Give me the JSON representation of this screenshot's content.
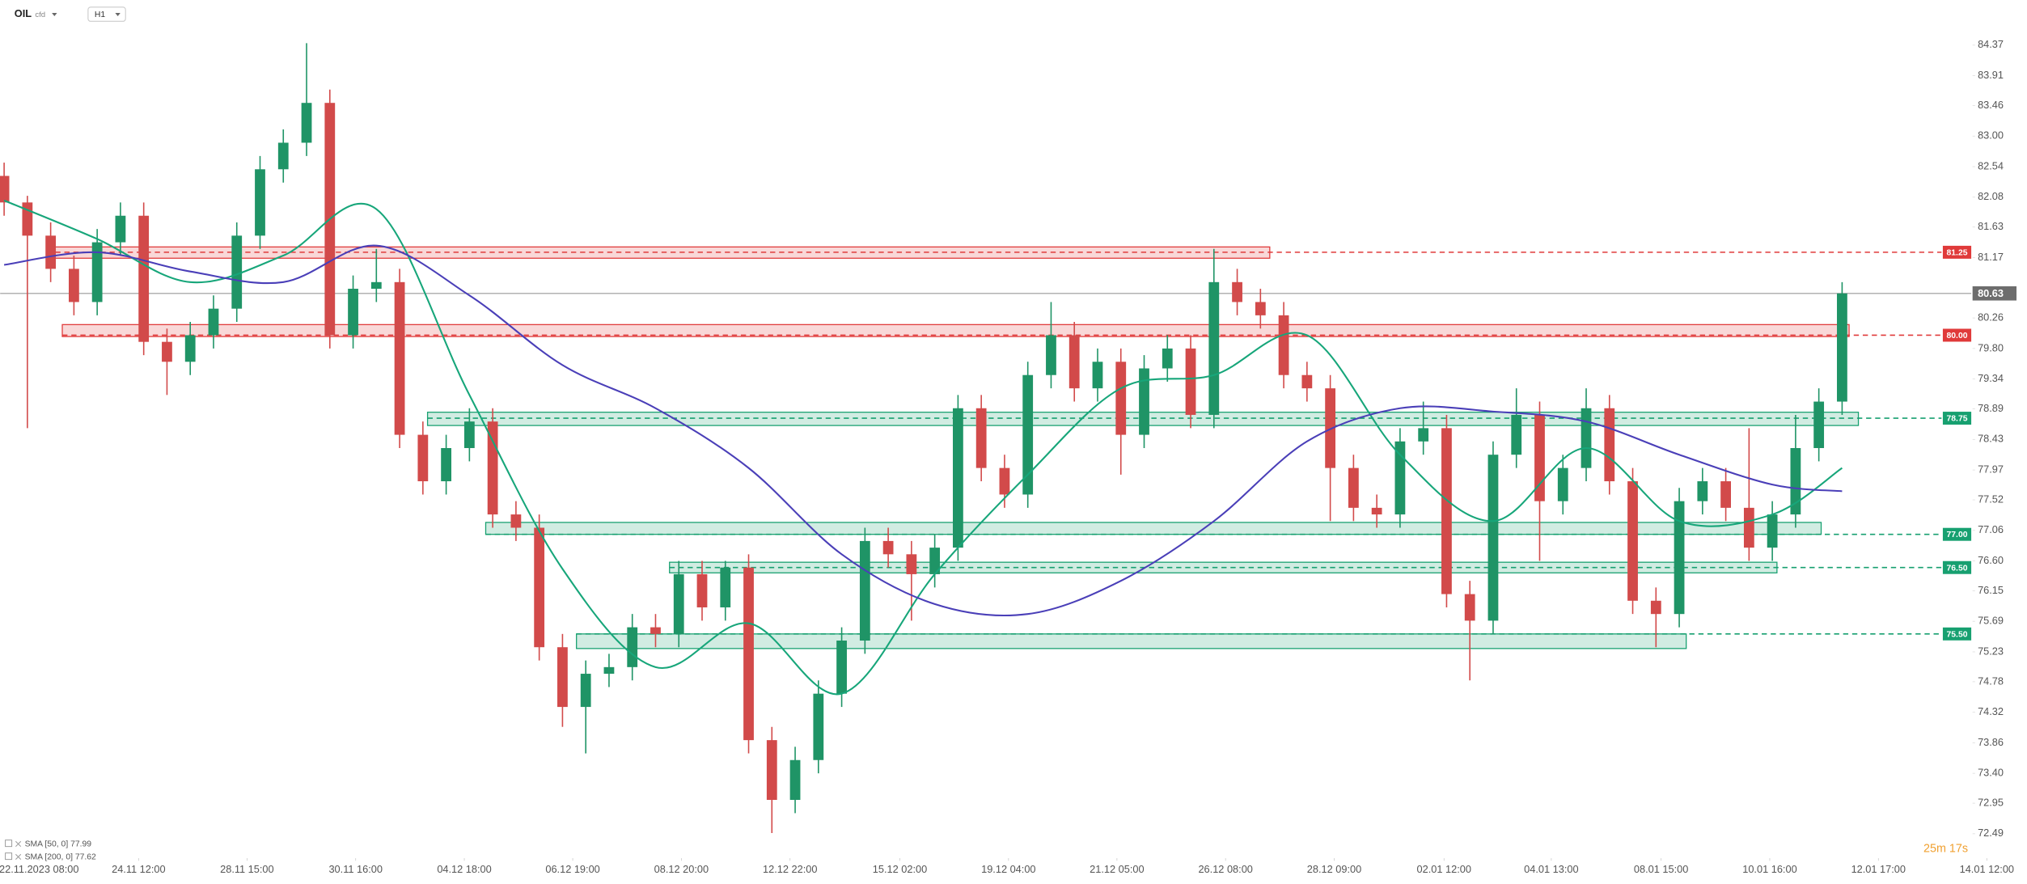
{
  "header": {
    "symbol": "OIL",
    "instrument_type": "cfd",
    "timeframe": "H1"
  },
  "footer": {
    "countdown": "25m 17s"
  },
  "chart_data": {
    "type": "candlestick",
    "xlim": [
      -0.17,
      86.94
    ],
    "xticks": [
      {
        "value": 1.5,
        "label": "22.11.2023 08:00"
      },
      {
        "value": 5.78,
        "label": "24.11 12:00"
      },
      {
        "value": 10.44,
        "label": "28.11 15:00"
      },
      {
        "value": 15.11,
        "label": "30.11 16:00"
      },
      {
        "value": 19.78,
        "label": "04.12 18:00"
      },
      {
        "value": 24.44,
        "label": "06.12 19:00"
      },
      {
        "value": 29.11,
        "label": "08.12 20:00"
      },
      {
        "value": 33.78,
        "label": "12.12 22:00"
      },
      {
        "value": 38.5,
        "label": "15.12 02:00"
      },
      {
        "value": 43.17,
        "label": "19.12 04:00"
      },
      {
        "value": 47.83,
        "label": "21.12 05:00"
      },
      {
        "value": 52.5,
        "label": "26.12 08:00"
      },
      {
        "value": 57.17,
        "label": "28.12 09:00"
      },
      {
        "value": 61.89,
        "label": "02.01 12:00"
      },
      {
        "value": 66.5,
        "label": "04.01 13:00"
      },
      {
        "value": 71.22,
        "label": "08.01 15:00"
      },
      {
        "value": 75.89,
        "label": "10.01 16:00"
      },
      {
        "value": 80.56,
        "label": "12.01 17:00"
      },
      {
        "value": 85.22,
        "label": "14.01 12:00"
      }
    ],
    "ylim": [
      72.2,
      85.05
    ],
    "yticks": [
      84.37,
      83.91,
      83.46,
      {
        "value": 83,
        "label": "83.00"
      },
      82.54,
      82.08,
      81.63,
      81.17,
      80.26,
      {
        "value": 79.8,
        "label": "79.80"
      },
      79.34,
      78.89,
      78.43,
      77.97,
      77.52,
      77.06,
      {
        "value": 76.6,
        "label": "76.60"
      },
      76.15,
      75.69,
      75.23,
      74.78,
      74.32,
      73.86,
      {
        "value": 73.4,
        "label": "73.40"
      },
      72.95,
      72.49
    ],
    "up_color": "#1f9466",
    "down_color": "#d24a4a",
    "open": [
      82.4,
      82.0,
      81.5,
      81.0,
      80.5,
      81.4,
      81.8,
      79.9,
      79.6,
      80.0,
      80.4,
      81.5,
      82.5,
      82.9,
      83.5,
      80.0,
      80.7,
      80.8,
      78.5,
      77.8,
      78.3,
      78.7,
      77.3,
      77.1,
      75.3,
      74.4,
      74.9,
      75.0,
      75.6,
      75.5,
      76.4,
      75.9,
      76.5,
      73.9,
      73.0,
      73.6,
      74.6,
      75.4,
      76.9,
      76.7,
      76.4,
      76.8,
      78.9,
      78.0,
      77.6,
      79.4,
      80.0,
      79.2,
      79.6,
      78.5,
      79.5,
      79.8,
      78.8,
      80.8,
      80.5,
      80.3,
      79.4,
      79.2,
      78.0,
      77.4,
      77.3,
      78.4,
      78.6,
      76.1,
      75.7,
      78.2,
      78.8,
      77.5,
      78.0,
      78.9,
      77.8,
      76.0,
      75.8,
      77.5,
      77.8,
      77.4,
      76.8,
      77.3,
      78.3,
      79.0
    ],
    "high": [
      82.6,
      82.1,
      81.7,
      81.2,
      81.6,
      82.0,
      82.0,
      80.1,
      80.2,
      80.6,
      81.7,
      82.7,
      83.1,
      84.4,
      83.7,
      80.9,
      81.3,
      81.0,
      78.7,
      78.5,
      78.9,
      78.9,
      77.5,
      77.3,
      75.5,
      75.1,
      75.2,
      75.8,
      75.8,
      76.6,
      76.6,
      76.6,
      76.7,
      74.1,
      73.8,
      74.8,
      75.6,
      77.1,
      77.1,
      76.9,
      77.0,
      79.1,
      79.1,
      78.2,
      79.6,
      80.5,
      80.2,
      79.8,
      79.8,
      79.7,
      80.0,
      80.0,
      81.3,
      81.0,
      80.7,
      80.5,
      79.6,
      79.4,
      78.2,
      77.6,
      78.6,
      79.0,
      78.8,
      76.3,
      78.4,
      79.2,
      79.0,
      78.2,
      79.2,
      79.1,
      78.0,
      76.2,
      77.7,
      78.0,
      78.0,
      78.6,
      77.5,
      78.8,
      79.2,
      80.8
    ],
    "low": [
      81.8,
      78.6,
      80.8,
      80.3,
      80.3,
      81.2,
      79.7,
      79.1,
      79.4,
      79.8,
      80.2,
      81.3,
      82.3,
      82.7,
      79.8,
      79.8,
      80.5,
      78.3,
      77.6,
      77.6,
      78.1,
      77.1,
      76.9,
      75.1,
      74.1,
      73.7,
      74.7,
      74.8,
      75.3,
      75.3,
      75.7,
      75.7,
      73.7,
      72.5,
      72.8,
      73.4,
      74.4,
      75.2,
      76.5,
      75.7,
      76.2,
      76.6,
      77.8,
      77.4,
      77.4,
      79.2,
      79.0,
      79.0,
      77.9,
      78.3,
      79.3,
      78.6,
      78.6,
      80.3,
      80.1,
      79.2,
      79.0,
      77.2,
      77.2,
      77.1,
      77.1,
      78.2,
      75.9,
      74.8,
      75.5,
      78.0,
      76.6,
      77.3,
      77.8,
      77.6,
      75.8,
      75.3,
      75.6,
      77.3,
      77.2,
      76.6,
      76.6,
      77.1,
      78.1,
      78.8
    ],
    "close": [
      82.0,
      81.5,
      81.0,
      80.5,
      81.4,
      81.8,
      79.9,
      79.6,
      80.0,
      80.4,
      81.5,
      82.5,
      82.9,
      83.5,
      80.0,
      80.7,
      80.8,
      78.5,
      77.8,
      78.3,
      78.7,
      77.3,
      77.1,
      75.3,
      74.4,
      74.9,
      75.0,
      75.6,
      75.5,
      76.4,
      75.9,
      76.5,
      73.9,
      73.0,
      73.6,
      74.6,
      75.4,
      76.9,
      76.7,
      76.4,
      76.8,
      78.9,
      78.0,
      77.6,
      79.4,
      80.0,
      79.2,
      79.6,
      78.5,
      79.5,
      79.8,
      78.8,
      80.8,
      80.5,
      80.3,
      79.4,
      79.2,
      78.0,
      77.4,
      77.3,
      78.4,
      78.6,
      76.1,
      75.7,
      78.2,
      78.8,
      77.5,
      78.0,
      78.9,
      77.8,
      76.0,
      75.8,
      77.5,
      77.8,
      77.4,
      76.8,
      77.3,
      78.3,
      79.0,
      80.63
    ],
    "indicators": [
      {
        "name": "SMA [50, 0]",
        "legend_value": 77.99,
        "color": "#17a67a",
        "x": [
          0,
          4,
          8,
          12,
          16,
          20,
          24,
          28,
          32,
          36,
          40,
          44,
          48,
          52,
          56,
          60,
          64,
          68,
          72,
          76,
          79
        ],
        "values": [
          82.03,
          81.45,
          80.8,
          81.2,
          81.9,
          79.1,
          76.48,
          75.0,
          75.66,
          74.6,
          76.4,
          77.9,
          79.2,
          79.4,
          80.0,
          78.2,
          77.2,
          78.3,
          77.2,
          77.3,
          78.0
        ]
      },
      {
        "name": "SMA [200, 0]",
        "legend_value": 77.62,
        "color": "#4a3fb8",
        "x": [
          0,
          4,
          8,
          12,
          16,
          20,
          24,
          28,
          32,
          36,
          40,
          44,
          48,
          52,
          56,
          60,
          64,
          68,
          72,
          76,
          79
        ],
        "values": [
          81.06,
          81.25,
          80.96,
          80.8,
          81.35,
          80.6,
          79.55,
          78.9,
          78.0,
          76.7,
          75.95,
          75.8,
          76.3,
          77.2,
          78.4,
          78.9,
          78.85,
          78.7,
          78.2,
          77.75,
          77.65
        ]
      }
    ],
    "levels": [
      {
        "level": 81.25,
        "color": "#e03a3a",
        "zone_low": 81.16,
        "zone_high": 81.33,
        "zone_x": [
          2.2,
          54.4
        ]
      },
      {
        "level": {
          "value": 80,
          "label": "80.00"
        },
        "color": "#e03a3a",
        "zone_low": 79.98,
        "zone_high": 80.16,
        "zone_x": [
          2.5,
          79.3
        ]
      },
      {
        "level": 78.75,
        "color": "#17a070",
        "zone_low": 78.64,
        "zone_high": 78.84,
        "zone_x": [
          18.2,
          79.7
        ]
      },
      {
        "level": {
          "value": 77,
          "label": "77.00"
        },
        "color": "#17a070",
        "zone_low": 77.0,
        "zone_high": 77.18,
        "zone_x": [
          20.7,
          78.1
        ]
      },
      {
        "level": {
          "value": 76.5,
          "label": "76.50"
        },
        "color": "#17a070",
        "zone_low": 76.42,
        "zone_high": 76.58,
        "zone_x": [
          28.6,
          76.2
        ]
      },
      {
        "level": {
          "value": 75.5,
          "label": "75.50"
        },
        "color": "#17a070",
        "zone_low": 75.28,
        "zone_high": 75.5,
        "zone_x": [
          24.6,
          72.3
        ]
      }
    ],
    "last_price": 80.63
  }
}
